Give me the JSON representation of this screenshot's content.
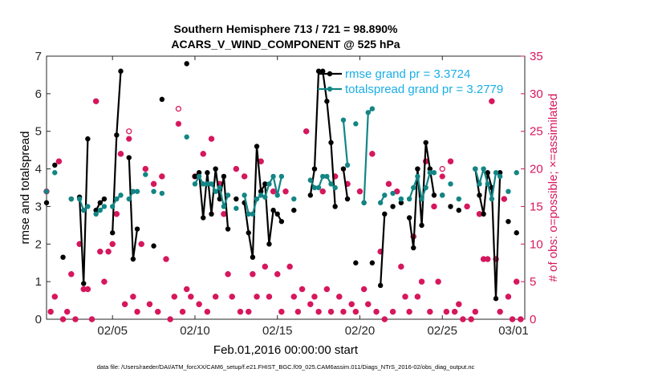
{
  "chart_data": {
    "type": "line",
    "title": [
      "Southern Hemisphere 713 / 721 = 98.890%",
      "ACARS_V_WIND_COMPONENT @ 525 hPa"
    ],
    "xlabel": "Feb.01,2016 00:00:00 start",
    "ylabel": "rmse and totalspread",
    "y2label": "# of obs: o=possible; ×=assimilated",
    "footnote": "data file: /Users/raeder/DAI/ATM_forcXX/CAM6_setup/f.e21.FHIST_BGC.f09_025.CAM6assim.011/Diags_NTrS_2016-02/obs_diag_output.nc",
    "xlim": [
      0,
      29
    ],
    "xticks": [
      {
        "value": 4,
        "label": "02/05"
      },
      {
        "value": 9,
        "label": "02/10"
      },
      {
        "value": 14,
        "label": "02/15"
      },
      {
        "value": 19,
        "label": "02/20"
      },
      {
        "value": 24,
        "label": "02/25"
      },
      {
        "value": 29,
        "label": "03/01"
      }
    ],
    "ylim": [
      0,
      7
    ],
    "yticks": [
      0,
      1,
      2,
      3,
      4,
      5,
      6,
      7
    ],
    "y2lim": [
      0,
      35
    ],
    "y2ticks": [
      0,
      5,
      10,
      15,
      20,
      25,
      30,
      35
    ],
    "legend": "upper right",
    "legend_text_color": "#19aee6",
    "y2_color": "#d6175d",
    "x": [
      0,
      0.25,
      0.5,
      0.75,
      1,
      1.25,
      1.5,
      1.75,
      2,
      2.25,
      2.5,
      2.75,
      3,
      3.25,
      3.5,
      3.75,
      4,
      4.25,
      4.5,
      4.75,
      5,
      5.25,
      5.5,
      5.75,
      6,
      6.25,
      6.5,
      6.75,
      7,
      7.25,
      7.5,
      7.75,
      8,
      8.25,
      8.5,
      8.75,
      9,
      9.25,
      9.5,
      9.75,
      10,
      10.25,
      10.5,
      10.75,
      11,
      11.25,
      11.5,
      11.75,
      12,
      12.25,
      12.5,
      12.75,
      13,
      13.25,
      13.5,
      13.75,
      14,
      14.25,
      14.5,
      14.75,
      15,
      15.25,
      15.5,
      15.75,
      16,
      16.25,
      16.5,
      16.75,
      17,
      17.25,
      17.5,
      17.75,
      18,
      18.25,
      18.5,
      18.75,
      19,
      19.25,
      19.5,
      19.75,
      20,
      20.25,
      20.5,
      20.75,
      21,
      21.25,
      21.5,
      21.75,
      22,
      22.25,
      22.5,
      22.75,
      23,
      23.25,
      23.5,
      23.75,
      24,
      24.25,
      24.5,
      24.75,
      25,
      25.25,
      25.5,
      25.75,
      26,
      26.25,
      26.5,
      26.75,
      27,
      27.25,
      27.5,
      27.75,
      28,
      28.25,
      28.5,
      28.75
    ],
    "series": [
      {
        "name": "rmse grand pr = 3.3724",
        "color": "#000000",
        "marker": "dot",
        "linestyle": "solid",
        "values": [
          3.1,
          null,
          4.1,
          null,
          1.65,
          null,
          3.2,
          null,
          3.25,
          0.95,
          4.8,
          null,
          2.9,
          3.1,
          3.2,
          null,
          2.3,
          4.9,
          6.6,
          null,
          4.3,
          1.6,
          2.4,
          null,
          null,
          null,
          1.95,
          null,
          5.85,
          null,
          null,
          null,
          null,
          null,
          6.8,
          null,
          3.8,
          3.9,
          2.7,
          3.9,
          2.8,
          4.0,
          3.2,
          3.8,
          2.4,
          null,
          3.2,
          null,
          3.1,
          2.3,
          1.65,
          4.6,
          3.4,
          3.6,
          2.0,
          2.9,
          2.8,
          2.6,
          null,
          null,
          2.9,
          null,
          null,
          null,
          3.3,
          4.0,
          6.6,
          6.6,
          5.8,
          4.7,
          3.0,
          null,
          4.0,
          3.2,
          null,
          1.5,
          null,
          3.1,
          null,
          1.5,
          null,
          0.9,
          2.8,
          null,
          3.0,
          null,
          3.1,
          null,
          2.7,
          1.9,
          4.0,
          2.5,
          4.7,
          4.0,
          3.3,
          null,
          3.3,
          null,
          3.0,
          null,
          2.9,
          null,
          null,
          null,
          4.0,
          3.3,
          2.8,
          3.9,
          3.5,
          0.55,
          3.9,
          null,
          2.6,
          null,
          2.3,
          null
        ]
      },
      {
        "name": "totalspread grand pr = 3.2779",
        "color": "#138585",
        "marker": "dot",
        "linestyle": "solid",
        "values": [
          3.4,
          null,
          3.9,
          null,
          null,
          null,
          3.2,
          null,
          3.2,
          2.9,
          3.0,
          null,
          2.8,
          2.9,
          3.0,
          null,
          3.0,
          3.2,
          3.3,
          null,
          3.2,
          3.4,
          3.4,
          null,
          3.85,
          null,
          3.4,
          null,
          3.35,
          null,
          null,
          null,
          null,
          null,
          4.85,
          null,
          3.6,
          3.8,
          3.6,
          3.6,
          3.6,
          3.4,
          3.5,
          3.0,
          3.3,
          null,
          2.95,
          null,
          3.3,
          2.8,
          2.8,
          3.2,
          3.3,
          3.25,
          3.6,
          3.8,
          3.3,
          3.8,
          null,
          null,
          3.2,
          null,
          null,
          null,
          3.7,
          3.5,
          3.5,
          3.8,
          3.8,
          3.6,
          3.5,
          null,
          5.3,
          4.1,
          null,
          5.2,
          null,
          3.1,
          5.5,
          5.6,
          null,
          3.1,
          3.3,
          null,
          3.35,
          null,
          3.2,
          null,
          3.2,
          3.5,
          3.8,
          3.2,
          3.5,
          3.9,
          3.9,
          null,
          3.3,
          null,
          3.6,
          null,
          3.2,
          null,
          null,
          null,
          4.0,
          3.6,
          4.0,
          3.6,
          3.2,
          3.9,
          3.8,
          null,
          3.4,
          null,
          3.9,
          null
        ]
      },
      {
        "color": "#d6175d",
        "marker": "circle",
        "linestyle": "none",
        "axis": "y2",
        "values": [
          17,
          1,
          3,
          21,
          0,
          1,
          6,
          0,
          10,
          4,
          4,
          0,
          29,
          9,
          5,
          9,
          10,
          14,
          22,
          2,
          25,
          3,
          1,
          10,
          20,
          2,
          18,
          1,
          19,
          8,
          0,
          3,
          28,
          1,
          4,
          3,
          19,
          2,
          22,
          1,
          24,
          3,
          18,
          14,
          6,
          3,
          20,
          1,
          19,
          1,
          6,
          3,
          21,
          7,
          3,
          17,
          6,
          1,
          17,
          7,
          3,
          1,
          4,
          25,
          2,
          3,
          1,
          17,
          4,
          1,
          19,
          3,
          1,
          18,
          2,
          1,
          17,
          4,
          2,
          22,
          1,
          9,
          0,
          18,
          1,
          17,
          7,
          3,
          1,
          11,
          3,
          5,
          21,
          1,
          15,
          5,
          20,
          1,
          21,
          1,
          2,
          0,
          15,
          0,
          1,
          14,
          8,
          8,
          29,
          8,
          1,
          16,
          3,
          0,
          5,
          0
        ]
      },
      {
        "color": "#d6175d",
        "marker": "star",
        "linestyle": "none",
        "axis": "y2",
        "values": [
          17,
          1,
          3,
          21,
          0,
          1,
          6,
          0,
          10,
          4,
          4,
          0,
          29,
          9,
          5,
          9,
          10,
          14,
          22,
          2,
          24,
          3,
          1,
          10,
          20,
          2,
          18,
          1,
          19,
          8,
          0,
          3,
          26,
          1,
          4,
          3,
          19,
          2,
          22,
          1,
          24,
          3,
          18,
          14,
          6,
          3,
          20,
          1,
          19,
          1,
          6,
          3,
          21,
          7,
          3,
          17,
          6,
          1,
          17,
          7,
          3,
          1,
          4,
          25,
          2,
          3,
          1,
          17,
          4,
          1,
          19,
          3,
          1,
          18,
          2,
          1,
          17,
          4,
          2,
          22,
          1,
          9,
          0,
          18,
          1,
          17,
          7,
          3,
          1,
          11,
          3,
          5,
          21,
          1,
          15,
          5,
          19,
          1,
          21,
          1,
          2,
          0,
          15,
          0,
          1,
          14,
          8,
          8,
          29,
          8,
          1,
          16,
          3,
          0,
          5,
          0
        ]
      }
    ]
  }
}
